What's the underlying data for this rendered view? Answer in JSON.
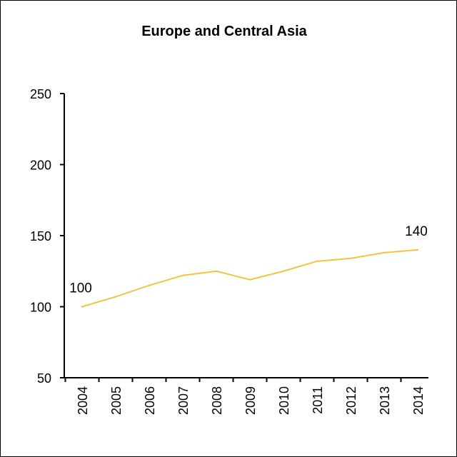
{
  "chart_data": {
    "type": "line",
    "title": "Europe and Central Asia",
    "xlabel": "",
    "ylabel": "",
    "categories": [
      "2004",
      "2005",
      "2006",
      "2007",
      "2008",
      "2009",
      "2010",
      "2011",
      "2012",
      "2013",
      "2014"
    ],
    "series": [
      {
        "values": [
          100,
          107,
          115,
          122,
          125,
          119,
          125,
          132,
          134,
          138,
          140
        ]
      }
    ],
    "ylim": [
      50,
      250
    ],
    "yticks": [
      50,
      100,
      150,
      200,
      250
    ],
    "data_labels": [
      {
        "index": 0,
        "text": "100"
      },
      {
        "index": 10,
        "text": "140"
      }
    ],
    "line_color": "#F5C242",
    "grid": false,
    "legend": "none"
  }
}
